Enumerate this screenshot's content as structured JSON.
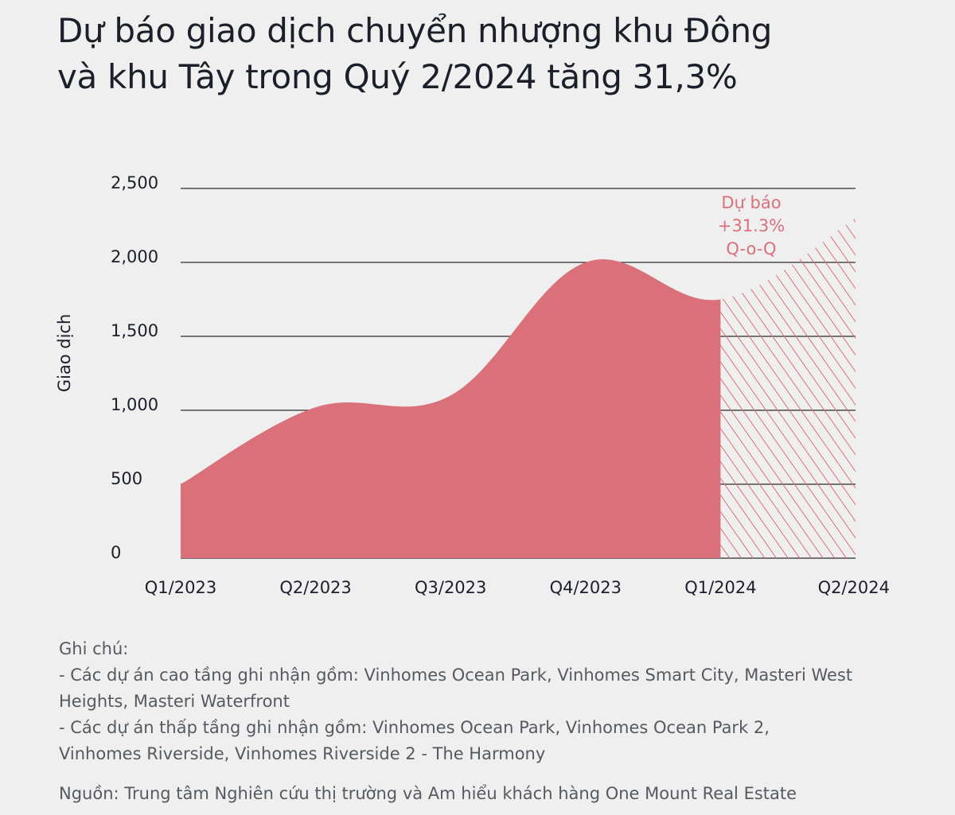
{
  "title": {
    "line1": "Dự báo giao dịch chuyển nhượng khu Đông",
    "line2": "và khu Tây trong Quý 2/2024 tăng 31,3%"
  },
  "chart_data": {
    "type": "area",
    "ylabel": "Giao dịch",
    "xlabel": "",
    "ylim": [
      0,
      2500
    ],
    "yticks": [
      0,
      500,
      1000,
      1500,
      2000,
      2500
    ],
    "ytick_labels": [
      "0",
      "500",
      "1,000",
      "1,500",
      "2,000",
      "2,500"
    ],
    "categories": [
      "Q1/2023",
      "Q2/2023",
      "Q3/2023",
      "Q4/2023",
      "Q1/2024",
      "Q2/2024"
    ],
    "values": [
      500,
      1020,
      1100,
      2000,
      1750,
      2300
    ],
    "forecast_from_index": 4,
    "grid": true,
    "annotation": {
      "lines": [
        "Dự báo",
        "+31.3%",
        "Q-o-Q"
      ]
    },
    "colors": {
      "area": "#d9707a",
      "forecast_hatch": "#d9707a",
      "annotation": "#d9707a",
      "grid": "#2a2a2a"
    }
  },
  "notes": {
    "heading": "Ghi chú:",
    "line1": "- Các dự án cao tầng ghi nhận gồm: Vinhomes Ocean Park, Vinhomes Smart City, Masteri West",
    "line2": "Heights, Masteri Waterfront",
    "line3": "- Các dự án thấp tầng ghi nhận gồm: Vinhomes Ocean Park, Vinhomes Ocean Park 2,",
    "line4": "Vinhomes Riverside, Vinhomes Riverside 2 - The Harmony"
  },
  "source": "Nguồn: Trung tâm Nghiên cứu thị trường và Am hiểu khách hàng One Mount Real Estate"
}
